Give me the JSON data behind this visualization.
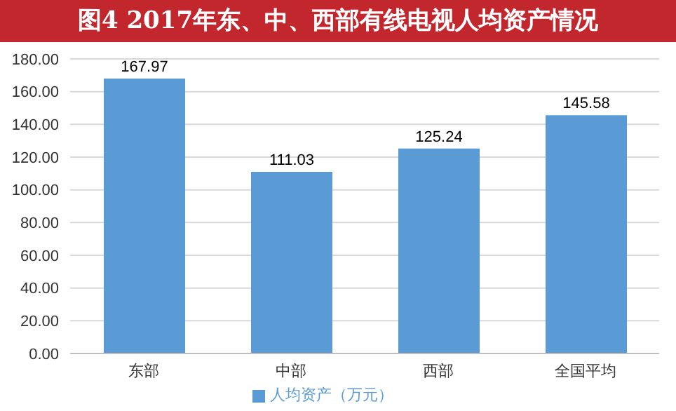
{
  "chart_data": {
    "type": "bar",
    "title": "图4 2017年东、中、西部有线电视人均资产情况",
    "categories": [
      "东部",
      "中部",
      "西部",
      "全国平均"
    ],
    "series": [
      {
        "name": "人均资产（万元）",
        "color": "#5b9bd5",
        "values": [
          167.97,
          111.03,
          125.24,
          145.58
        ]
      }
    ],
    "ylim": [
      0,
      180
    ],
    "yticks": [
      {
        "value": 0,
        "label": "0.00"
      },
      {
        "value": 20,
        "label": "20.00"
      },
      {
        "value": 40,
        "label": "40.00"
      },
      {
        "value": 60,
        "label": "60.00"
      },
      {
        "value": 80,
        "label": "80.00"
      },
      {
        "value": 100,
        "label": "100.00"
      },
      {
        "value": 120,
        "label": "120.00"
      },
      {
        "value": 140,
        "label": "140.00"
      },
      {
        "value": 160,
        "label": "160.00"
      },
      {
        "value": 180,
        "label": "180.00"
      }
    ],
    "grid": "y",
    "legend": "bottom",
    "data_labels": true
  }
}
